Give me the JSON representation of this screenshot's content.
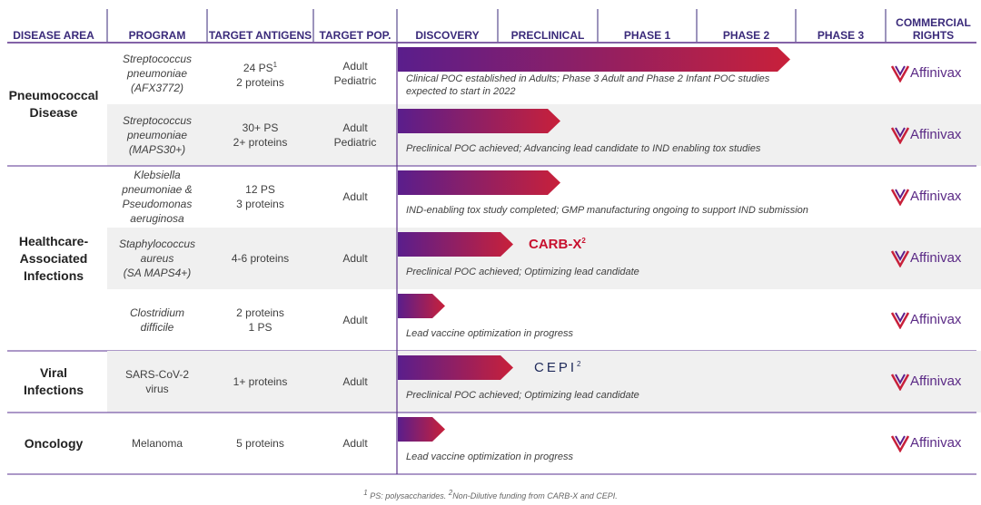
{
  "headers": [
    "DISEASE AREA",
    "PROGRAM",
    "TARGET ANTIGENS",
    "TARGET POP.",
    "DISCOVERY",
    "PRECLINICAL",
    "PHASE 1",
    "PHASE 2",
    "PHASE 3",
    "COMMERCIAL RIGHTS"
  ],
  "groups": [
    {
      "area": [
        "Pneumococcal",
        "Disease"
      ],
      "rows": [
        {
          "program": [
            "Streptococcus",
            "pneumoniae",
            "(AFX3772)"
          ],
          "antigens": [
            "24 PS",
            "2 proteins"
          ],
          "antigens_sup": "1",
          "population": [
            "Adult",
            "Pediatric"
          ],
          "note": [
            "Clinical POC established in Adults;  Phase 3 Adult and Phase 2 Infant POC studies",
            "expected to start in 2022"
          ],
          "rights": "Affinivax"
        },
        {
          "program": [
            "Streptococcus",
            "pneumoniae",
            "(MAPS30+)"
          ],
          "antigens": [
            "30+ PS",
            "2+ proteins"
          ],
          "population": [
            "Adult",
            "Pediatric"
          ],
          "note": [
            "Preclinical POC achieved; Advancing lead candidate to IND enabling tox studies"
          ],
          "rights": "Affinivax"
        }
      ]
    },
    {
      "area": [
        "Healthcare-",
        "Associated",
        "Infections"
      ],
      "rows": [
        {
          "program": [
            "Klebsiella",
            "pneumoniae &",
            "Pseudomonas",
            "aeruginosa"
          ],
          "antigens": [
            "12 PS",
            "3 proteins"
          ],
          "population": [
            "Adult"
          ],
          "note": [
            "IND-enabling tox study completed;  GMP manufacturing ongoing to support IND submission"
          ],
          "rights": "Affinivax"
        },
        {
          "program": [
            "Staphylococcus",
            "aureus",
            "(SA MAPS4+)"
          ],
          "antigens": [
            "4-6 proteins"
          ],
          "population": [
            "Adult"
          ],
          "note": [
            "Preclinical POC achieved; Optimizing lead candidate"
          ],
          "partner": "CARB-X",
          "partner_sup": "2",
          "rights": "Affinivax"
        },
        {
          "program": [
            "Clostridium",
            "difficile"
          ],
          "antigens": [
            "2 proteins",
            "1 PS"
          ],
          "population": [
            "Adult"
          ],
          "note": [
            "Lead vaccine optimization in progress"
          ],
          "rights": "Affinivax"
        }
      ]
    },
    {
      "area": [
        "Viral",
        "Infections"
      ],
      "rows": [
        {
          "program": [
            "SARS-CoV-2",
            "virus"
          ],
          "antigens": [
            "1+ proteins"
          ],
          "population": [
            "Adult"
          ],
          "note": [
            "Preclinical POC achieved;  Optimizing lead candidate"
          ],
          "partner": "CEPI",
          "partner_sup": "2",
          "rights": "Affinivax"
        }
      ]
    },
    {
      "area": [
        "Oncology"
      ],
      "rows": [
        {
          "program": [
            "Melanoma"
          ],
          "antigens": [
            "5 proteins"
          ],
          "population": [
            "Adult"
          ],
          "note": [
            "Lead vaccine optimization in progress"
          ],
          "rights": "Affinivax"
        }
      ]
    }
  ],
  "footnote": {
    "sup1": "1",
    "text1": " PS: polysaccharides. ",
    "sup2": "2",
    "text2": "Non-Dilutive funding from CARB-X and CEPI."
  }
}
